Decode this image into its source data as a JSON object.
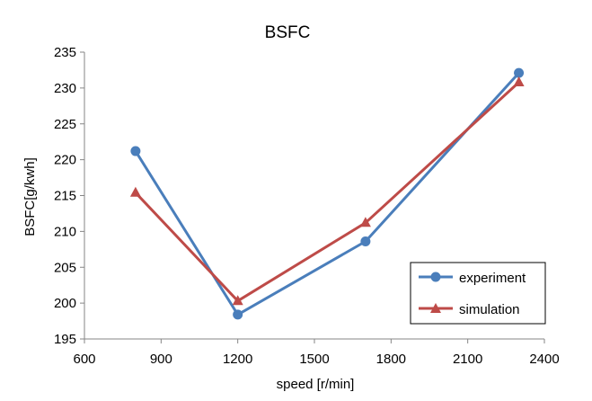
{
  "chart_data": {
    "type": "line",
    "title": "BSFC",
    "xlabel": "speed [r/min]",
    "ylabel": "BSFC[g/kwh]",
    "xlim": [
      600,
      2400
    ],
    "ylim": [
      195,
      235
    ],
    "xticks": [
      600,
      900,
      1200,
      1500,
      1800,
      2100,
      2400
    ],
    "yticks": [
      195,
      200,
      205,
      210,
      215,
      220,
      225,
      230,
      235
    ],
    "grid": false,
    "legend_position": "bottom-right",
    "series": [
      {
        "name": "experiment",
        "color": "#4a7ebb",
        "marker": "circle",
        "x": [
          800,
          1200,
          1700,
          2300
        ],
        "y": [
          221.2,
          198.4,
          208.6,
          232.1
        ]
      },
      {
        "name": "simulation",
        "color": "#be4b48",
        "marker": "triangle",
        "x": [
          800,
          1200,
          1700,
          2300
        ],
        "y": [
          215.4,
          200.3,
          211.2,
          230.8
        ]
      }
    ]
  }
}
